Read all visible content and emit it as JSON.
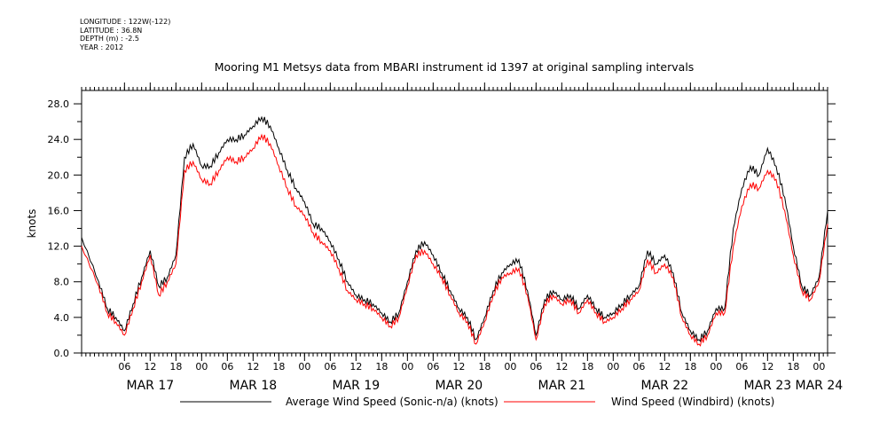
{
  "metadata": {
    "longitude": "LONGITUDE : 122W(-122)",
    "latitude": "LATITUDE : 36.8N",
    "depth": "DEPTH (m) : -2.5",
    "year": "YEAR : 2012"
  },
  "colors": {
    "series1": "#000000",
    "series2": "#ff0000"
  },
  "chart_data": {
    "type": "line",
    "title": "Mooring M1 Metsys data from MBARI instrument id 1397 at original sampling intervals",
    "xlabel": "",
    "ylabel": "knots",
    "ylim": [
      0,
      29.5
    ],
    "xlim": [
      "2012-03-16T20:00",
      "2012-03-24T02:00"
    ],
    "y_ticks": [
      "0.0",
      "4.0",
      "8.0",
      "12.0",
      "16.0",
      "20.0",
      "24.0",
      "28.0"
    ],
    "hour_ticks": [
      {
        "x": "2012-03-17T06:00",
        "label": "06"
      },
      {
        "x": "2012-03-17T12:00",
        "label": "12"
      },
      {
        "x": "2012-03-17T18:00",
        "label": "18"
      },
      {
        "x": "2012-03-18T00:00",
        "label": "00"
      },
      {
        "x": "2012-03-18T06:00",
        "label": "06"
      },
      {
        "x": "2012-03-18T12:00",
        "label": "12"
      },
      {
        "x": "2012-03-18T18:00",
        "label": "18"
      },
      {
        "x": "2012-03-19T00:00",
        "label": "00"
      },
      {
        "x": "2012-03-19T06:00",
        "label": "06"
      },
      {
        "x": "2012-03-19T12:00",
        "label": "12"
      },
      {
        "x": "2012-03-19T18:00",
        "label": "18"
      },
      {
        "x": "2012-03-20T00:00",
        "label": "00"
      },
      {
        "x": "2012-03-20T06:00",
        "label": "06"
      },
      {
        "x": "2012-03-20T12:00",
        "label": "12"
      },
      {
        "x": "2012-03-20T18:00",
        "label": "18"
      },
      {
        "x": "2012-03-21T00:00",
        "label": "00"
      },
      {
        "x": "2012-03-21T06:00",
        "label": "06"
      },
      {
        "x": "2012-03-21T12:00",
        "label": "12"
      },
      {
        "x": "2012-03-21T18:00",
        "label": "18"
      },
      {
        "x": "2012-03-22T00:00",
        "label": "00"
      },
      {
        "x": "2012-03-22T06:00",
        "label": "06"
      },
      {
        "x": "2012-03-22T12:00",
        "label": "12"
      },
      {
        "x": "2012-03-22T18:00",
        "label": "18"
      },
      {
        "x": "2012-03-23T00:00",
        "label": "00"
      },
      {
        "x": "2012-03-23T06:00",
        "label": "06"
      },
      {
        "x": "2012-03-23T12:00",
        "label": "12"
      },
      {
        "x": "2012-03-23T18:00",
        "label": "18"
      },
      {
        "x": "2012-03-24T00:00",
        "label": "00"
      }
    ],
    "day_labels": [
      {
        "x": "2012-03-17T12:00",
        "label": "MAR 17"
      },
      {
        "x": "2012-03-18T12:00",
        "label": "MAR 18"
      },
      {
        "x": "2012-03-19T12:00",
        "label": "MAR 19"
      },
      {
        "x": "2012-03-20T12:00",
        "label": "MAR 20"
      },
      {
        "x": "2012-03-21T12:00",
        "label": "MAR 21"
      },
      {
        "x": "2012-03-22T12:00",
        "label": "MAR 22"
      },
      {
        "x": "2012-03-23T12:00",
        "label": "MAR 23"
      },
      {
        "x": "2012-03-24T00:00",
        "label": "MAR 24"
      }
    ],
    "series": [
      {
        "name": "Average Wind Speed (Sonic-n/a) (knots)",
        "points": [
          [
            "2012-03-16T20:00",
            13.0
          ],
          [
            "2012-03-17T00:00",
            8.0
          ],
          [
            "2012-03-17T02:00",
            5.0
          ],
          [
            "2012-03-17T04:00",
            4.0
          ],
          [
            "2012-03-17T06:00",
            2.5
          ],
          [
            "2012-03-17T08:00",
            5.5
          ],
          [
            "2012-03-17T10:00",
            8.5
          ],
          [
            "2012-03-17T12:00",
            11.5
          ],
          [
            "2012-03-17T14:00",
            7.5
          ],
          [
            "2012-03-17T16:00",
            8.5
          ],
          [
            "2012-03-17T18:00",
            11.0
          ],
          [
            "2012-03-17T20:00",
            22.0
          ],
          [
            "2012-03-17T22:00",
            23.5
          ],
          [
            "2012-03-18T00:00",
            21.0
          ],
          [
            "2012-03-18T02:00",
            21.0
          ],
          [
            "2012-03-18T04:00",
            22.5
          ],
          [
            "2012-03-18T06:00",
            24.0
          ],
          [
            "2012-03-18T08:00",
            24.0
          ],
          [
            "2012-03-18T10:00",
            24.5
          ],
          [
            "2012-03-18T12:00",
            25.5
          ],
          [
            "2012-03-18T14:00",
            26.5
          ],
          [
            "2012-03-18T16:00",
            25.5
          ],
          [
            "2012-03-18T18:00",
            23.0
          ],
          [
            "2012-03-18T20:00",
            20.5
          ],
          [
            "2012-03-18T22:00",
            18.5
          ],
          [
            "2012-03-19T00:00",
            17.0
          ],
          [
            "2012-03-19T02:00",
            14.5
          ],
          [
            "2012-03-19T04:00",
            14.0
          ],
          [
            "2012-03-19T06:00",
            12.5
          ],
          [
            "2012-03-19T08:00",
            10.5
          ],
          [
            "2012-03-19T10:00",
            8.0
          ],
          [
            "2012-03-19T12:00",
            6.5
          ],
          [
            "2012-03-19T14:00",
            6.0
          ],
          [
            "2012-03-19T16:00",
            5.5
          ],
          [
            "2012-03-19T18:00",
            4.5
          ],
          [
            "2012-03-19T20:00",
            3.5
          ],
          [
            "2012-03-19T22:00",
            4.5
          ],
          [
            "2012-03-20T00:00",
            8.0
          ],
          [
            "2012-03-20T02:00",
            11.5
          ],
          [
            "2012-03-20T04:00",
            12.5
          ],
          [
            "2012-03-20T06:00",
            11.0
          ],
          [
            "2012-03-20T08:00",
            9.0
          ],
          [
            "2012-03-20T10:00",
            7.0
          ],
          [
            "2012-03-20T12:00",
            5.0
          ],
          [
            "2012-03-20T14:00",
            4.0
          ],
          [
            "2012-03-20T16:00",
            1.5
          ],
          [
            "2012-03-20T18:00",
            4.0
          ],
          [
            "2012-03-20T20:00",
            7.0
          ],
          [
            "2012-03-20T22:00",
            9.0
          ],
          [
            "2012-03-21T00:00",
            10.0
          ],
          [
            "2012-03-21T02:00",
            10.5
          ],
          [
            "2012-03-21T04:00",
            7.0
          ],
          [
            "2012-03-21T06:00",
            2.0
          ],
          [
            "2012-03-21T08:00",
            6.0
          ],
          [
            "2012-03-21T10:00",
            7.0
          ],
          [
            "2012-03-21T12:00",
            6.0
          ],
          [
            "2012-03-21T14:00",
            6.5
          ],
          [
            "2012-03-21T16:00",
            5.0
          ],
          [
            "2012-03-21T18:00",
            6.5
          ],
          [
            "2012-03-21T20:00",
            5.0
          ],
          [
            "2012-03-21T22:00",
            4.0
          ],
          [
            "2012-03-22T00:00",
            4.5
          ],
          [
            "2012-03-22T02:00",
            5.5
          ],
          [
            "2012-03-22T04:00",
            6.5
          ],
          [
            "2012-03-22T06:00",
            7.5
          ],
          [
            "2012-03-22T08:00",
            11.5
          ],
          [
            "2012-03-22T10:00",
            10.0
          ],
          [
            "2012-03-22T12:00",
            11.0
          ],
          [
            "2012-03-22T14:00",
            9.0
          ],
          [
            "2012-03-22T16:00",
            4.5
          ],
          [
            "2012-03-22T18:00",
            2.5
          ],
          [
            "2012-03-22T20:00",
            1.5
          ],
          [
            "2012-03-22T22:00",
            2.5
          ],
          [
            "2012-03-23T00:00",
            5.0
          ],
          [
            "2012-03-23T02:00",
            5.0
          ],
          [
            "2012-03-23T04:00",
            14.0
          ],
          [
            "2012-03-23T06:00",
            18.5
          ],
          [
            "2012-03-23T08:00",
            21.0
          ],
          [
            "2012-03-23T10:00",
            20.0
          ],
          [
            "2012-03-23T12:00",
            23.0
          ],
          [
            "2012-03-23T14:00",
            21.0
          ],
          [
            "2012-03-23T16:00",
            17.5
          ],
          [
            "2012-03-23T18:00",
            12.0
          ],
          [
            "2012-03-23T20:00",
            7.5
          ],
          [
            "2012-03-23T22:00",
            6.5
          ],
          [
            "2012-03-24T00:00",
            8.5
          ],
          [
            "2012-03-24T02:00",
            16.0
          ]
        ]
      },
      {
        "name": "Wind Speed (Windbird) (knots)",
        "points": [
          [
            "2012-03-16T20:00",
            12.0
          ],
          [
            "2012-03-17T00:00",
            7.5
          ],
          [
            "2012-03-17T02:00",
            4.5
          ],
          [
            "2012-03-17T04:00",
            3.5
          ],
          [
            "2012-03-17T06:00",
            2.0
          ],
          [
            "2012-03-17T08:00",
            5.0
          ],
          [
            "2012-03-17T10:00",
            8.0
          ],
          [
            "2012-03-17T12:00",
            11.0
          ],
          [
            "2012-03-17T14:00",
            6.5
          ],
          [
            "2012-03-17T16:00",
            8.0
          ],
          [
            "2012-03-17T18:00",
            10.0
          ],
          [
            "2012-03-17T20:00",
            20.5
          ],
          [
            "2012-03-17T22:00",
            21.5
          ],
          [
            "2012-03-18T00:00",
            19.5
          ],
          [
            "2012-03-18T02:00",
            19.0
          ],
          [
            "2012-03-18T04:00",
            20.5
          ],
          [
            "2012-03-18T06:00",
            22.0
          ],
          [
            "2012-03-18T08:00",
            21.5
          ],
          [
            "2012-03-18T10:00",
            22.0
          ],
          [
            "2012-03-18T12:00",
            23.0
          ],
          [
            "2012-03-18T14:00",
            24.5
          ],
          [
            "2012-03-18T16:00",
            23.5
          ],
          [
            "2012-03-18T18:00",
            21.0
          ],
          [
            "2012-03-18T20:00",
            18.5
          ],
          [
            "2012-03-18T22:00",
            16.5
          ],
          [
            "2012-03-19T00:00",
            15.5
          ],
          [
            "2012-03-19T02:00",
            13.5
          ],
          [
            "2012-03-19T04:00",
            12.5
          ],
          [
            "2012-03-19T06:00",
            11.5
          ],
          [
            "2012-03-19T08:00",
            9.5
          ],
          [
            "2012-03-19T10:00",
            7.0
          ],
          [
            "2012-03-19T12:00",
            6.0
          ],
          [
            "2012-03-19T14:00",
            5.5
          ],
          [
            "2012-03-19T16:00",
            5.0
          ],
          [
            "2012-03-19T18:00",
            4.0
          ],
          [
            "2012-03-19T20:00",
            3.0
          ],
          [
            "2012-03-19T22:00",
            4.0
          ],
          [
            "2012-03-20T00:00",
            7.5
          ],
          [
            "2012-03-20T02:00",
            11.0
          ],
          [
            "2012-03-20T04:00",
            11.5
          ],
          [
            "2012-03-20T06:00",
            10.0
          ],
          [
            "2012-03-20T08:00",
            8.5
          ],
          [
            "2012-03-20T10:00",
            6.5
          ],
          [
            "2012-03-20T12:00",
            4.5
          ],
          [
            "2012-03-20T14:00",
            3.5
          ],
          [
            "2012-03-20T16:00",
            1.0
          ],
          [
            "2012-03-20T18:00",
            3.5
          ],
          [
            "2012-03-20T20:00",
            6.5
          ],
          [
            "2012-03-20T22:00",
            8.5
          ],
          [
            "2012-03-21T00:00",
            9.0
          ],
          [
            "2012-03-21T02:00",
            9.5
          ],
          [
            "2012-03-21T04:00",
            6.5
          ],
          [
            "2012-03-21T06:00",
            1.5
          ],
          [
            "2012-03-21T08:00",
            5.5
          ],
          [
            "2012-03-21T10:00",
            6.5
          ],
          [
            "2012-03-21T12:00",
            5.5
          ],
          [
            "2012-03-21T14:00",
            6.0
          ],
          [
            "2012-03-21T16:00",
            4.5
          ],
          [
            "2012-03-21T18:00",
            6.0
          ],
          [
            "2012-03-21T20:00",
            4.5
          ],
          [
            "2012-03-21T22:00",
            3.5
          ],
          [
            "2012-03-22T00:00",
            4.0
          ],
          [
            "2012-03-22T02:00",
            5.0
          ],
          [
            "2012-03-22T04:00",
            6.0
          ],
          [
            "2012-03-22T06:00",
            7.0
          ],
          [
            "2012-03-22T08:00",
            10.5
          ],
          [
            "2012-03-22T10:00",
            9.0
          ],
          [
            "2012-03-22T12:00",
            10.0
          ],
          [
            "2012-03-22T14:00",
            8.5
          ],
          [
            "2012-03-22T16:00",
            4.0
          ],
          [
            "2012-03-22T18:00",
            2.0
          ],
          [
            "2012-03-22T20:00",
            1.0
          ],
          [
            "2012-03-22T22:00",
            2.0
          ],
          [
            "2012-03-23T00:00",
            4.5
          ],
          [
            "2012-03-23T02:00",
            4.5
          ],
          [
            "2012-03-23T04:00",
            12.0
          ],
          [
            "2012-03-23T06:00",
            16.5
          ],
          [
            "2012-03-23T08:00",
            19.0
          ],
          [
            "2012-03-23T10:00",
            18.5
          ],
          [
            "2012-03-23T12:00",
            20.5
          ],
          [
            "2012-03-23T14:00",
            19.5
          ],
          [
            "2012-03-23T16:00",
            16.0
          ],
          [
            "2012-03-23T18:00",
            11.0
          ],
          [
            "2012-03-23T20:00",
            7.0
          ],
          [
            "2012-03-23T22:00",
            6.0
          ],
          [
            "2012-03-24T00:00",
            8.0
          ],
          [
            "2012-03-24T02:00",
            14.5
          ]
        ]
      }
    ],
    "legend": "bottom"
  }
}
